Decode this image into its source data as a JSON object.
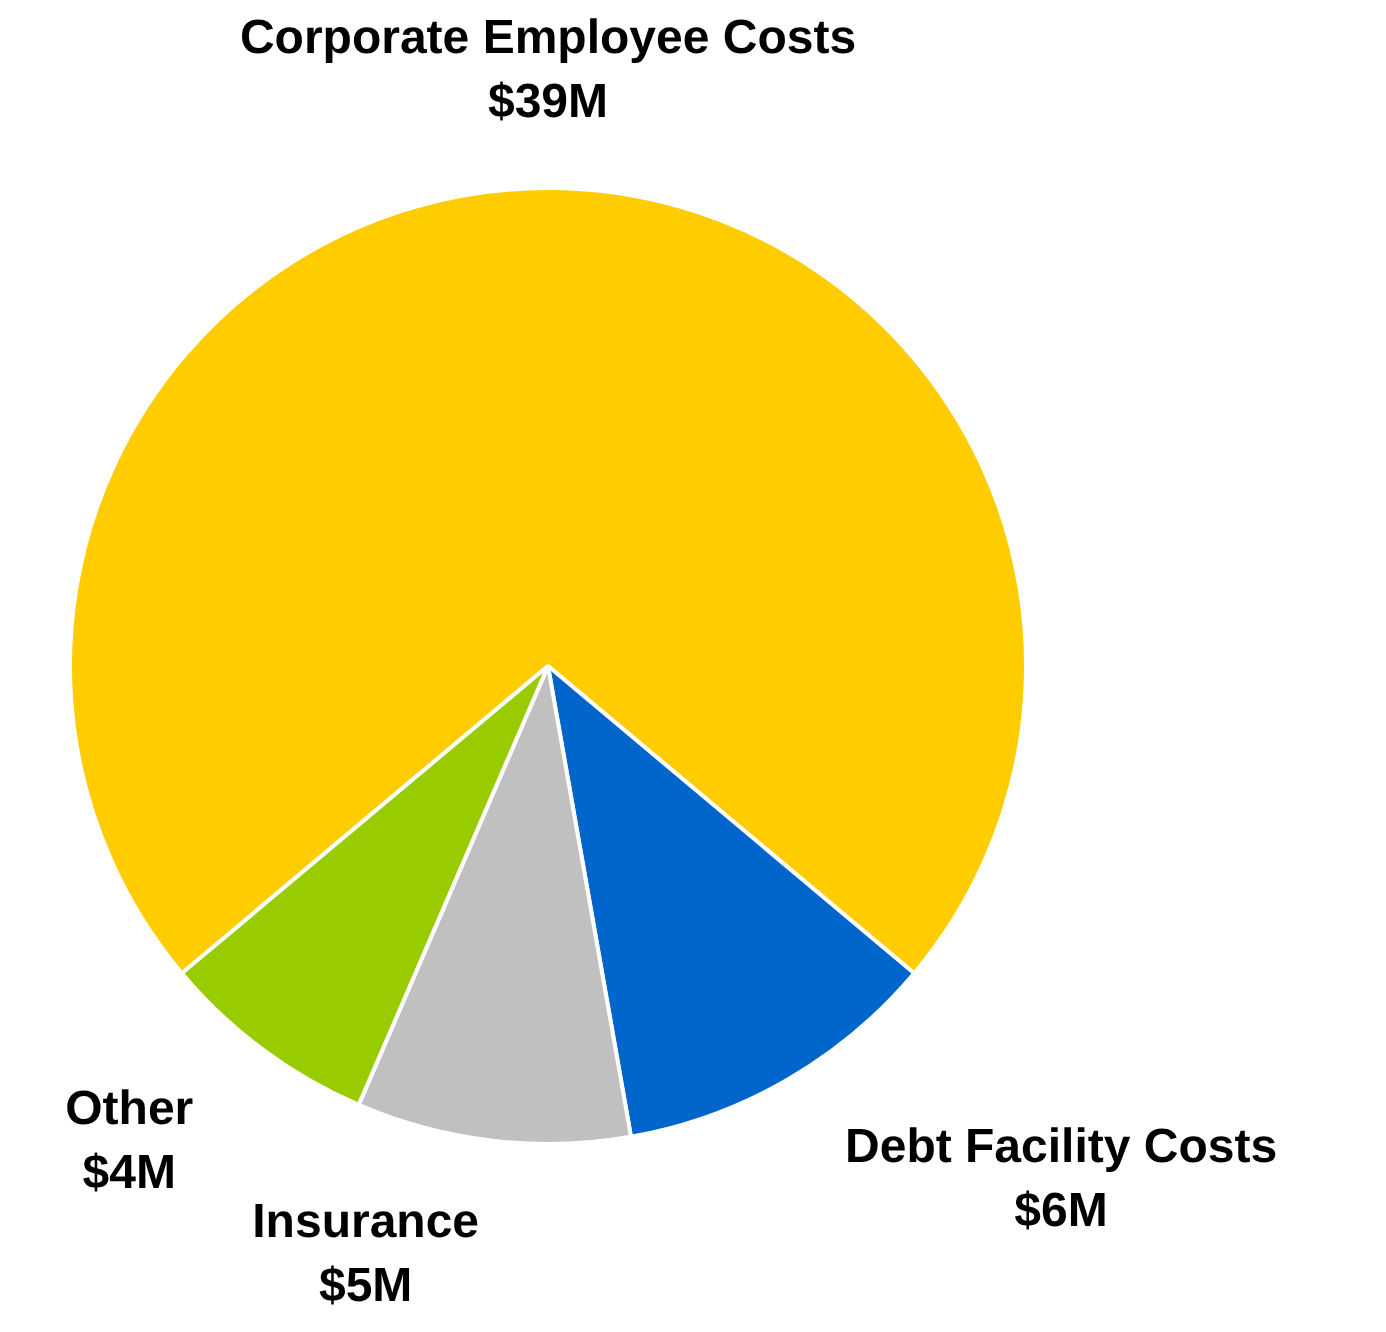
{
  "chart_data": {
    "type": "pie",
    "categories": [
      "Corporate Employee Costs",
      "Debt Facility Costs",
      "Insurance",
      "Other"
    ],
    "values": [
      39,
      6,
      5,
      4
    ],
    "value_labels": [
      "$39M",
      "$6M",
      "$5M",
      "$4M"
    ],
    "colors": [
      "#ffcc00",
      "#0066cc",
      "#c0c0c0",
      "#99cc00"
    ],
    "legend": false
  }
}
